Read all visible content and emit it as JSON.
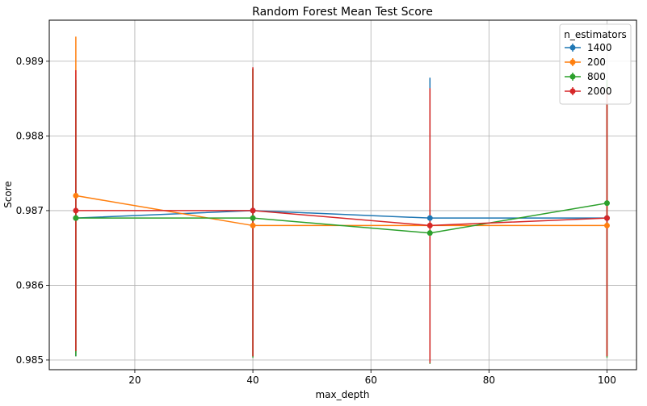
{
  "chart_data": {
    "type": "line",
    "title": "Random Forest Mean Test Score",
    "xlabel": "max_depth",
    "ylabel": "Score",
    "xlim": [
      5.5,
      105
    ],
    "ylim": [
      0.98487,
      0.98955
    ],
    "xticks": [
      20,
      40,
      60,
      80,
      100
    ],
    "xtick_labels": [
      "20",
      "40",
      "60",
      "80",
      "100"
    ],
    "yticks": [
      0.985,
      0.986,
      0.987,
      0.988,
      0.989
    ],
    "ytick_labels": [
      "0.985",
      "0.986",
      "0.987",
      "0.988",
      "0.989"
    ],
    "grid": true,
    "legend_title": "n_estimators",
    "legend_position": "top-right",
    "x": [
      10,
      40,
      70,
      100
    ],
    "series": [
      {
        "name": "1400",
        "color": "#1f77b4",
        "values": [
          0.9869,
          0.987,
          0.9869,
          0.9869
        ],
        "err_low": [
          0.98505,
          0.98505,
          0.98495,
          0.98505
        ],
        "err_high": [
          0.98875,
          0.9889,
          0.98878,
          0.98875
        ]
      },
      {
        "name": "200",
        "color": "#ff7f0e",
        "values": [
          0.9872,
          0.9868,
          0.9868,
          0.9868
        ],
        "err_low": [
          0.9851,
          0.98505,
          0.98495,
          0.98505
        ],
        "err_high": [
          0.98933,
          0.9889,
          0.98862,
          0.9887
        ]
      },
      {
        "name": "800",
        "color": "#2ca02c",
        "values": [
          0.9869,
          0.9869,
          0.9867,
          0.9871
        ],
        "err_low": [
          0.98505,
          0.98503,
          0.98495,
          0.98503
        ],
        "err_high": [
          0.98875,
          0.9889,
          0.98862,
          0.98875
        ]
      },
      {
        "name": "2000",
        "color": "#d62728",
        "values": [
          0.987,
          0.987,
          0.9868,
          0.9869
        ],
        "err_low": [
          0.98512,
          0.98505,
          0.98496,
          0.98505
        ],
        "err_high": [
          0.98888,
          0.98892,
          0.98864,
          0.9886
        ]
      }
    ]
  }
}
